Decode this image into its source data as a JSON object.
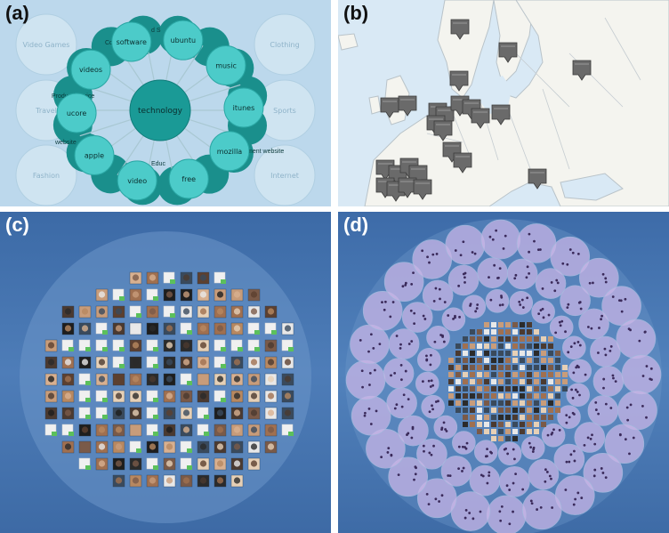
{
  "panels": {
    "a": {
      "label": "(a)"
    },
    "b": {
      "label": "(b)"
    },
    "c": {
      "label": "(c)"
    },
    "d": {
      "label": "(d)"
    }
  },
  "panel_a": {
    "center": "technology",
    "outer_categories": [
      "Video Games",
      "Clothing",
      "Travel",
      "Sports",
      "Fashion",
      "Internet"
    ],
    "inner_nodes": [
      "software",
      "ubuntu",
      "music",
      "itunes",
      "mozilla",
      "free",
      "video",
      "apple",
      "ucore",
      "videos"
    ],
    "ring_labels": [
      "Compu",
      "Product/service",
      "website",
      "Software",
      "Entertainment website",
      "Educ",
      "d S"
    ],
    "colors": {
      "bg": "#bcd8ec",
      "ring_dark": "#1a8f8c",
      "node_light": "#4ccbc9",
      "center": "#1a9a96",
      "outer_faded": "#cfe4f1"
    }
  },
  "panel_b": {
    "colors": {
      "sea": "#d9e9f5",
      "land": "#f4f4ef",
      "border": "#b9c3c9",
      "marker": "#6a6a6a"
    }
  },
  "panel_c": {
    "colors": {
      "bg": "#4677b3",
      "disc": "#6a93c6"
    }
  },
  "panel_d": {
    "colors": {
      "bg": "#4a79b6",
      "bubble": "#b9a8dc"
    }
  }
}
